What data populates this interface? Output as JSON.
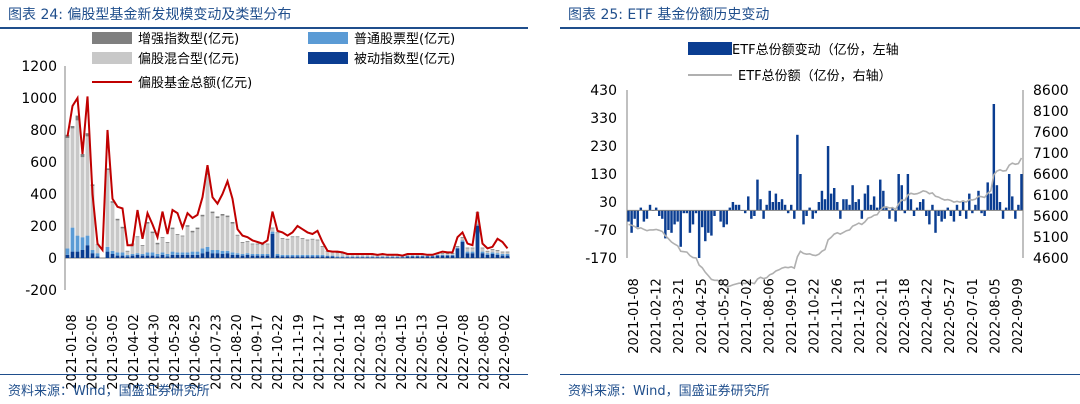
{
  "left": {
    "title": "图表 24:  偏股型基金新发规模变动及类型分布",
    "source": "资料来源：Wind，国盛证券研究所",
    "chart_data": {
      "type": "bar",
      "legend": [
        "增强指数型(亿元)",
        "普通股票型(亿元)",
        "偏股混合型(亿元)",
        "被动指数型(亿元)",
        "偏股基金总额(亿元)"
      ],
      "legend_placement": "top",
      "ylim": [
        -200,
        1200
      ],
      "yticks": [
        -200,
        0,
        200,
        400,
        600,
        800,
        1000,
        1200
      ],
      "x_tick_labels": [
        "2021-01-08",
        "2021-02-05",
        "2021-03-05",
        "2021-04-02",
        "2021-04-30",
        "2021-05-28",
        "2021-06-25",
        "2021-07-23",
        "2021-08-20",
        "2021-09-17",
        "2021-10-22",
        "2021-11-19",
        "2021-12-17",
        "2022-01-14",
        "2022-02-18",
        "2022-03-18",
        "2022-04-15",
        "2022-05-13",
        "2022-06-10",
        "2022-07-08",
        "2022-08-05",
        "2022-09-02"
      ],
      "x": [
        "2021-01-08",
        "2021-01-15",
        "2021-01-22",
        "2021-01-29",
        "2021-02-05",
        "2021-02-12",
        "2021-02-19",
        "2021-02-26",
        "2021-03-05",
        "2021-03-12",
        "2021-03-19",
        "2021-03-26",
        "2021-04-02",
        "2021-04-09",
        "2021-04-16",
        "2021-04-23",
        "2021-04-30",
        "2021-05-07",
        "2021-05-14",
        "2021-05-21",
        "2021-05-28",
        "2021-06-04",
        "2021-06-11",
        "2021-06-18",
        "2021-06-25",
        "2021-07-02",
        "2021-07-09",
        "2021-07-16",
        "2021-07-23",
        "2021-07-30",
        "2021-08-06",
        "2021-08-13",
        "2021-08-20",
        "2021-08-27",
        "2021-09-03",
        "2021-09-10",
        "2021-09-17",
        "2021-09-24",
        "2021-10-01",
        "2021-10-08",
        "2021-10-15",
        "2021-10-22",
        "2021-10-29",
        "2021-11-05",
        "2021-11-12",
        "2021-11-19",
        "2021-11-26",
        "2021-12-03",
        "2021-12-10",
        "2021-12-17",
        "2021-12-24",
        "2021-12-31",
        "2022-01-07",
        "2022-01-14",
        "2022-01-21",
        "2022-01-28",
        "2022-02-04",
        "2022-02-11",
        "2022-02-18",
        "2022-02-25",
        "2022-03-04",
        "2022-03-11",
        "2022-03-18",
        "2022-03-25",
        "2022-04-01",
        "2022-04-08",
        "2022-04-15",
        "2022-04-22",
        "2022-04-29",
        "2022-05-06",
        "2022-05-13",
        "2022-05-20",
        "2022-05-27",
        "2022-06-03",
        "2022-06-10",
        "2022-06-17",
        "2022-06-24",
        "2022-07-01",
        "2022-07-08",
        "2022-07-15",
        "2022-07-22",
        "2022-07-29",
        "2022-08-05",
        "2022-08-12",
        "2022-08-19",
        "2022-08-26",
        "2022-09-02",
        "2022-09-09",
        "2022-09-16"
      ],
      "series": [
        {
          "name": "增强指数型(亿元)",
          "color": "#7f7f7f",
          "values": [
            20,
            15,
            30,
            20,
            20,
            10,
            5,
            0,
            10,
            10,
            10,
            10,
            5,
            5,
            5,
            5,
            10,
            10,
            10,
            5,
            5,
            10,
            5,
            5,
            10,
            10,
            10,
            10,
            15,
            10,
            10,
            10,
            10,
            10,
            5,
            5,
            5,
            5,
            5,
            5,
            5,
            5,
            5,
            5,
            5,
            5,
            5,
            5,
            5,
            5,
            5,
            5,
            5,
            5,
            5,
            5,
            5,
            5,
            5,
            5,
            5,
            5,
            5,
            5,
            5,
            5,
            5,
            5,
            5,
            5,
            5,
            5,
            5,
            5,
            5,
            5,
            5,
            5,
            5,
            5,
            5,
            5,
            5,
            5,
            5,
            5,
            5,
            5,
            5
          ]
        },
        {
          "name": "普通股票型(亿元)",
          "color": "#5b9bd5",
          "values": [
            40,
            150,
            100,
            80,
            60,
            20,
            20,
            0,
            30,
            20,
            20,
            20,
            10,
            10,
            10,
            10,
            20,
            20,
            15,
            15,
            15,
            20,
            15,
            15,
            15,
            20,
            20,
            30,
            30,
            20,
            20,
            20,
            15,
            15,
            10,
            10,
            10,
            10,
            10,
            10,
            10,
            15,
            10,
            10,
            10,
            10,
            10,
            10,
            10,
            10,
            10,
            10,
            5,
            5,
            5,
            5,
            5,
            5,
            5,
            5,
            5,
            5,
            5,
            5,
            5,
            5,
            5,
            5,
            5,
            5,
            5,
            5,
            5,
            5,
            5,
            5,
            5,
            5,
            5,
            10,
            10,
            10,
            10,
            10,
            10,
            10,
            10,
            10,
            10
          ]
        },
        {
          "name": "偏股混合型(亿元)",
          "color": "#c8c8c8",
          "values": [
            690,
            620,
            720,
            500,
            620,
            400,
            50,
            0,
            480,
            300,
            200,
            150,
            20,
            60,
            100,
            50,
            180,
            120,
            60,
            90,
            70,
            140,
            110,
            100,
            160,
            120,
            140,
            200,
            450,
            230,
            200,
            220,
            210,
            180,
            110,
            70,
            70,
            60,
            60,
            55,
            60,
            20,
            130,
            100,
            95,
            110,
            110,
            100,
            90,
            95,
            90,
            50,
            25,
            20,
            20,
            18,
            10,
            10,
            10,
            10,
            10,
            10,
            8,
            10,
            8,
            5,
            5,
            5,
            5,
            5,
            5,
            5,
            5,
            5,
            5,
            5,
            5,
            5,
            5,
            15,
            20,
            20,
            70,
            20,
            10,
            15,
            15,
            10,
            10
          ]
        },
        {
          "name": "被动指数型(亿元)",
          "color": "#0a3d91",
          "values": [
            20,
            40,
            40,
            50,
            80,
            30,
            10,
            0,
            40,
            25,
            15,
            15,
            10,
            15,
            20,
            15,
            15,
            15,
            10,
            20,
            10,
            20,
            20,
            20,
            20,
            20,
            20,
            30,
            40,
            30,
            30,
            25,
            30,
            20,
            20,
            15,
            20,
            15,
            15,
            15,
            15,
            150,
            15,
            10,
            10,
            10,
            10,
            10,
            10,
            10,
            10,
            10,
            10,
            10,
            5,
            5,
            5,
            5,
            5,
            5,
            5,
            5,
            5,
            5,
            5,
            5,
            5,
            5,
            10,
            10,
            10,
            10,
            10,
            10,
            15,
            15,
            15,
            15,
            60,
            100,
            30,
            30,
            200,
            30,
            20,
            25,
            20,
            15,
            15
          ]
        }
      ],
      "total": {
        "name": "偏股基金总额(亿元)",
        "color": "#c00000",
        "values": [
          760,
          950,
          1000,
          650,
          1010,
          400,
          90,
          50,
          800,
          370,
          320,
          310,
          80,
          80,
          300,
          120,
          280,
          210,
          130,
          290,
          150,
          300,
          280,
          190,
          280,
          250,
          270,
          380,
          580,
          380,
          340,
          400,
          480,
          370,
          180,
          140,
          130,
          110,
          100,
          90,
          110,
          290,
          170,
          160,
          140,
          160,
          200,
          180,
          160,
          150,
          170,
          100,
          45,
          40,
          40,
          35,
          25,
          25,
          25,
          25,
          25,
          25,
          20,
          25,
          20,
          20,
          20,
          15,
          25,
          25,
          25,
          25,
          20,
          20,
          30,
          40,
          35,
          35,
          130,
          160,
          90,
          80,
          290,
          90,
          60,
          70,
          120,
          100,
          60
        ]
      }
    }
  },
  "right": {
    "title": "图表 25:  ETF 基金份额历史变动",
    "source": "资料来源：Wind，国盛证券研究所",
    "chart_data": {
      "type": "bar",
      "legend": [
        "ETF总份额变动（亿份，左轴",
        "ETF总份额（亿份，右轴）"
      ],
      "legend_placement": "top",
      "ylim_left": [
        -170,
        430
      ],
      "yticks_left": [
        -170,
        -70,
        30,
        130,
        230,
        330,
        430
      ],
      "ylim_right": [
        4600,
        8600
      ],
      "yticks_right": [
        4600,
        5100,
        5600,
        6100,
        6600,
        7100,
        7600,
        8100,
        8600
      ],
      "x_tick_labels": [
        "2021-01-08",
        "2021-02-12",
        "2021-03-21",
        "2021-04-25",
        "2021-05-28",
        "2021-07-02",
        "2021-08-06",
        "2021-09-10",
        "2021-10-22",
        "2021-11-26",
        "2021-12-31",
        "2022-02-11",
        "2022-03-18",
        "2022-04-22",
        "2022-05-27",
        "2022-07-01",
        "2022-08-05",
        "2022-09-09"
      ],
      "series": [
        {
          "name": "ETF总份额变动（亿份，左轴",
          "color": "#0a3d91",
          "axis": "left",
          "values": [
            -40,
            -80,
            -30,
            -60,
            10,
            -40,
            -30,
            20,
            0,
            10,
            -20,
            -30,
            -100,
            -70,
            -80,
            -50,
            -40,
            -130,
            -10,
            -10,
            -80,
            -50,
            -10,
            -170,
            -60,
            -110,
            -80,
            -90,
            -20,
            0,
            -40,
            -60,
            -50,
            10,
            30,
            20,
            20,
            0,
            -10,
            50,
            -30,
            -20,
            110,
            40,
            -30,
            20,
            70,
            30,
            60,
            30,
            40,
            20,
            -10,
            20,
            -30,
            270,
            130,
            -50,
            -20,
            10,
            -30,
            -10,
            30,
            70,
            40,
            230,
            60,
            80,
            30,
            -30,
            40,
            40,
            20,
            90,
            30,
            40,
            -30,
            60,
            90,
            20,
            50,
            10,
            110,
            70,
            10,
            -30,
            10,
            -40,
            130,
            90,
            -10,
            130,
            40,
            -20,
            10,
            30,
            40,
            -20,
            -50,
            20,
            -80,
            -20,
            -40,
            -30,
            10,
            -20,
            -40,
            20,
            -20,
            30,
            -30,
            60,
            -10,
            20,
            70,
            -10,
            -20,
            100,
            60,
            380,
            90,
            30,
            -30,
            10,
            130,
            50,
            -30,
            20,
            130
          ]
        },
        {
          "name": "ETF总份额（亿份，右轴）",
          "color": "#b0b0b0",
          "axis": "right",
          "values": [
            5400,
            5380,
            5350,
            5300,
            5320,
            5280,
            5250,
            5270,
            5270,
            5280,
            5260,
            5230,
            5130,
            5060,
            4980,
            4930,
            4890,
            4760,
            4750,
            4740,
            4660,
            4610,
            4600,
            4430,
            4370,
            4260,
            4180,
            4090,
            4070,
            4070,
            4030,
            3970,
            3920,
            3930,
            3960,
            3980,
            4000,
            4000,
            3990,
            4040,
            4010,
            3990,
            4100,
            4140,
            4110,
            4130,
            4200,
            4230,
            4290,
            4320,
            4360,
            4380,
            4370,
            4390,
            4360,
            4630,
            4760,
            4710,
            4690,
            4700,
            4670,
            4660,
            4690,
            4760,
            4800,
            5030,
            5090,
            5170,
            5200,
            5170,
            5210,
            5250,
            5270,
            5360,
            5390,
            5430,
            5400,
            5460,
            5550,
            5570,
            5620,
            5630,
            5740,
            5810,
            5820,
            5790,
            5800,
            5760,
            5890,
            5980,
            5970,
            6100,
            6140,
            6120,
            6130,
            6160,
            6200,
            6180,
            6130,
            6150,
            6070,
            6050,
            6010,
            5980,
            5990,
            5970,
            5930,
            5950,
            5930,
            5960,
            5930,
            5990,
            5980,
            6000,
            6070,
            6060,
            6040,
            6140,
            6200,
            6580,
            6670,
            6700,
            6670,
            6680,
            6810,
            6860,
            6830,
            6850,
            6980
          ]
        }
      ]
    }
  }
}
